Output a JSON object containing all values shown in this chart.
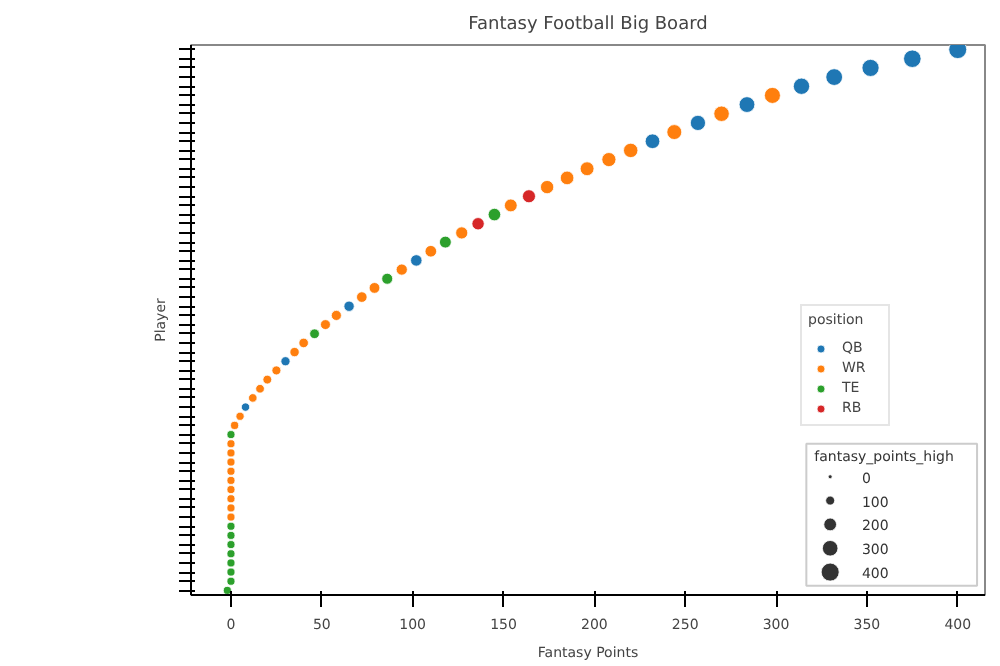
{
  "chart_data": {
    "type": "bubble",
    "title": "Fantasy Football Big Board",
    "xlabel": "Fantasy Points",
    "ylabel": "Player",
    "legend_title": "position",
    "annotations": [
      "fantasy_points_high"
    ],
    "orientation": "horizontal",
    "marker": "circle",
    "legend": "bottom right",
    "xlim": [
      -22,
      415
    ],
    "xticks": [
      0,
      50,
      100,
      150,
      200,
      250,
      300,
      350,
      400
    ],
    "size_legend": [
      0,
      100,
      200,
      300,
      400
    ],
    "categories": [
      null,
      null,
      null,
      null,
      null,
      null,
      null,
      null,
      null,
      null,
      null,
      null,
      null,
      null,
      null,
      null,
      null,
      null,
      null,
      null,
      null,
      null,
      null,
      null,
      null,
      null,
      null,
      null,
      null,
      null,
      null,
      null,
      null,
      null,
      null,
      null,
      null,
      null,
      null,
      null,
      null,
      null,
      null,
      null,
      null,
      null,
      null,
      null,
      null,
      null,
      null,
      null,
      null,
      null,
      null,
      null,
      null,
      null,
      null,
      null
    ],
    "series": [
      {
        "name": "QB",
        "color": "#1f77b4",
        "values": [
          400,
          375,
          352,
          332,
          314,
          null,
          284,
          null,
          257,
          null,
          232,
          null,
          null,
          null,
          null,
          null,
          null,
          null,
          null,
          null,
          null,
          null,
          null,
          102,
          null,
          null,
          null,
          null,
          65,
          null,
          null,
          null,
          null,
          null,
          30,
          null,
          null,
          null,
          null,
          8,
          null,
          null,
          null,
          null,
          null,
          null,
          null,
          null,
          null,
          null,
          null,
          null,
          null,
          null,
          null,
          null,
          null,
          null,
          null,
          null
        ],
        "sizes": [
          400,
          380,
          362,
          346,
          331,
          null,
          307,
          null,
          286,
          null,
          266,
          null,
          null,
          null,
          null,
          null,
          null,
          null,
          null,
          null,
          null,
          null,
          null,
          162,
          null,
          null,
          null,
          null,
          132,
          null,
          null,
          null,
          null,
          null,
          104,
          null,
          null,
          null,
          null,
          86,
          null,
          null,
          null,
          null,
          null,
          null,
          null,
          null,
          null,
          null,
          null,
          null,
          null,
          null,
          null,
          null,
          null,
          null,
          null,
          null
        ]
      },
      {
        "name": "WR",
        "color": "#ff7f0e",
        "values": [
          null,
          null,
          null,
          null,
          null,
          298,
          null,
          270,
          null,
          244,
          null,
          220,
          208,
          196,
          185,
          174,
          null,
          154,
          null,
          null,
          127,
          null,
          110,
          null,
          94,
          null,
          79,
          72,
          null,
          58,
          52,
          null,
          40,
          35,
          null,
          25,
          20,
          16,
          12,
          null,
          5,
          2,
          null,
          0,
          0,
          0,
          0,
          0,
          0,
          0,
          0,
          0,
          null,
          null,
          null,
          null,
          null,
          null,
          null,
          null
        ],
        "sizes": [
          null,
          null,
          null,
          null,
          null,
          318,
          null,
          296,
          null,
          275,
          null,
          256,
          246,
          237,
          228,
          219,
          null,
          203,
          null,
          null,
          182,
          null,
          168,
          null,
          155,
          null,
          143,
          138,
          null,
          126,
          122,
          null,
          112,
          108,
          null,
          100,
          96,
          93,
          90,
          null,
          84,
          82,
          null,
          80,
          80,
          80,
          80,
          80,
          80,
          80,
          80,
          80,
          null,
          null,
          null,
          null,
          null,
          null,
          null,
          null
        ]
      },
      {
        "name": "TE",
        "color": "#2ca02c",
        "values": [
          null,
          null,
          null,
          null,
          null,
          null,
          null,
          null,
          null,
          null,
          null,
          null,
          null,
          null,
          null,
          null,
          null,
          null,
          145,
          null,
          null,
          118,
          null,
          null,
          null,
          86,
          null,
          null,
          null,
          null,
          null,
          46,
          null,
          null,
          null,
          null,
          null,
          null,
          null,
          null,
          null,
          null,
          0,
          null,
          null,
          null,
          null,
          null,
          null,
          null,
          null,
          null,
          0,
          0,
          0,
          0,
          0,
          0,
          0,
          -2
        ],
        "sizes": [
          null,
          null,
          null,
          null,
          null,
          null,
          null,
          null,
          null,
          null,
          null,
          null,
          null,
          null,
          null,
          null,
          null,
          null,
          196,
          null,
          null,
          174,
          null,
          null,
          null,
          149,
          null,
          null,
          null,
          null,
          null,
          117,
          null,
          null,
          null,
          null,
          null,
          null,
          null,
          null,
          null,
          null,
          80,
          null,
          null,
          null,
          null,
          null,
          null,
          null,
          null,
          null,
          80,
          80,
          80,
          80,
          80,
          80,
          80,
          80
        ]
      },
      {
        "name": "RB",
        "color": "#d62728",
        "values": [
          null,
          null,
          null,
          null,
          null,
          null,
          null,
          null,
          null,
          null,
          null,
          null,
          null,
          null,
          null,
          null,
          164,
          null,
          null,
          136,
          null,
          null,
          null,
          null,
          null,
          null,
          null,
          null,
          null,
          null,
          null,
          null,
          null,
          null,
          null,
          null,
          null,
          null,
          null,
          null,
          null,
          null,
          null,
          null,
          null,
          null,
          null,
          null,
          null,
          null,
          null,
          null,
          null,
          null,
          null,
          null,
          null,
          null,
          null,
          null
        ],
        "sizes": [
          null,
          null,
          null,
          null,
          null,
          null,
          null,
          null,
          null,
          null,
          null,
          null,
          null,
          null,
          null,
          null,
          211,
          null,
          null,
          189,
          null,
          null,
          null,
          null,
          null,
          null,
          null,
          null,
          null,
          null,
          null,
          null,
          null,
          null,
          null,
          null,
          null,
          null,
          null,
          null,
          null,
          null,
          null,
          null,
          null,
          null,
          null,
          null,
          null,
          null,
          null,
          null,
          null,
          null,
          null,
          null,
          null,
          null,
          null,
          null
        ]
      }
    ]
  }
}
